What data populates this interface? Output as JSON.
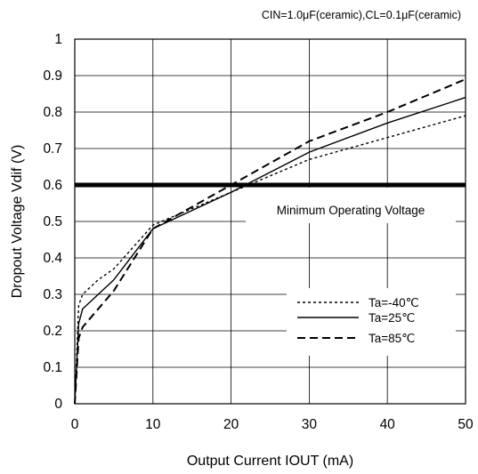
{
  "chart_data": {
    "type": "line",
    "conditions": "CIN=1.0μF(ceramic),CL=0.1μF(ceramic)",
    "xlabel": "Output Current IOUT (mA)",
    "ylabel": "Dropout Voltage Vdif (V)",
    "xlim": [
      0,
      50
    ],
    "ylim": [
      0,
      1
    ],
    "xticks": [
      "0",
      "10",
      "20",
      "30",
      "40",
      "50"
    ],
    "yticks": [
      "0",
      "0.1",
      "0.2",
      "0.3",
      "0.4",
      "0.5",
      "0.6",
      "0.7",
      "0.8",
      "0.9",
      "1"
    ],
    "grid": true,
    "legend_position": "lower-right",
    "reference_line": {
      "y": 0.6,
      "label": "Minimum Operating Voltage"
    },
    "series": [
      {
        "name": "Ta=-40℃",
        "style": "dotted",
        "x": [
          0,
          0.5,
          1,
          3,
          5,
          10,
          20,
          30,
          40,
          50
        ],
        "y": [
          0,
          0.27,
          0.3,
          0.34,
          0.37,
          0.49,
          0.58,
          0.67,
          0.73,
          0.79
        ]
      },
      {
        "name": "Ta=25℃",
        "style": "solid",
        "x": [
          0,
          0.5,
          1,
          5,
          10,
          20,
          30,
          40,
          50
        ],
        "y": [
          0,
          0.22,
          0.26,
          0.34,
          0.48,
          0.58,
          0.69,
          0.77,
          0.84
        ]
      },
      {
        "name": "Ta=85℃",
        "style": "dashed",
        "x": [
          0,
          0.5,
          1,
          5,
          10,
          20,
          30,
          40,
          50
        ],
        "y": [
          0,
          0.18,
          0.21,
          0.31,
          0.48,
          0.6,
          0.72,
          0.8,
          0.89
        ]
      }
    ]
  }
}
